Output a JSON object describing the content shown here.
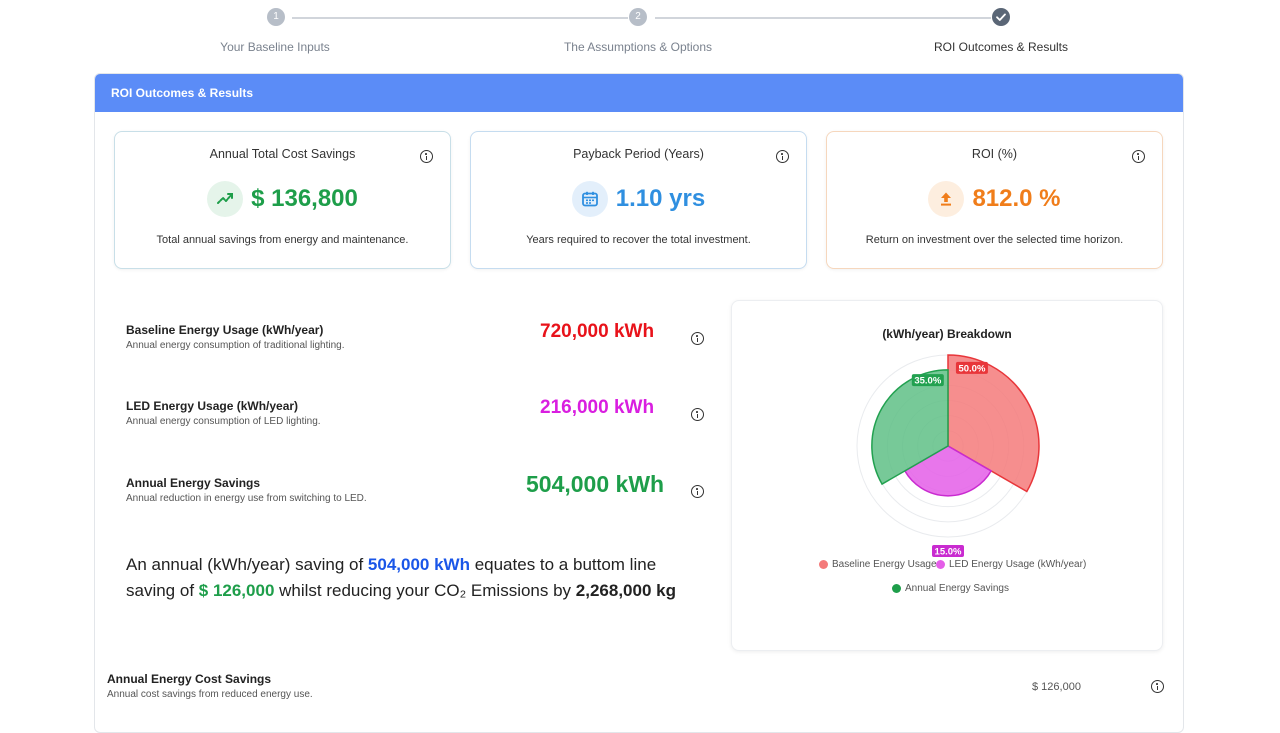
{
  "stepper": {
    "steps": [
      {
        "number": "1",
        "label": "Your Baseline Inputs"
      },
      {
        "number": "2",
        "label": "The Assumptions & Options"
      },
      {
        "number": "",
        "label": "ROI Outcomes & Results"
      }
    ]
  },
  "panel": {
    "header": "ROI Outcomes & Results"
  },
  "kpis": [
    {
      "title": "Annual Total Cost Savings",
      "value": "$ 136,800",
      "desc": "Total annual savings from energy and maintenance.",
      "color": "#1e9e4a",
      "icon": "trending-up-icon"
    },
    {
      "title": "Payback Period (Years)",
      "value": "1.10 yrs",
      "desc": "Years required to recover the total investment.",
      "color": "#2f8fe0",
      "icon": "calendar-icon"
    },
    {
      "title": "ROI (%)",
      "value": "812.0 %",
      "desc": "Return on investment over the selected time horizon.",
      "color": "#f07d1a",
      "icon": "upload-arrow-icon"
    }
  ],
  "metrics": [
    {
      "title": "Baseline Energy Usage (kWh/year)",
      "desc": "Annual energy consumption of traditional lighting.",
      "value": "720,000 kWh",
      "color": "#e8121a"
    },
    {
      "title": "LED Energy Usage (kWh/year)",
      "desc": "Annual energy consumption of LED lighting.",
      "value": "216,000 kWh",
      "color": "#d91ee0"
    },
    {
      "title": "Annual Energy Savings",
      "desc": "Annual reduction in energy use from switching to LED.",
      "value": "504,000 kWh",
      "color": "#1e9e4a"
    }
  ],
  "summary": {
    "part1": "An annual (kWh/year) saving of ",
    "kwh": "504,000 kWh",
    "part2": " equates to a buttom line saving of ",
    "money": "$ 126,000",
    "part3": " whilst reducing your CO₂ Emissions by ",
    "co2": "2,268,000 kg"
  },
  "chart": {
    "title": "(kWh/year) Breakdown",
    "legend": [
      "Baseline Energy Usage",
      "LED Energy Usage (kWh/year)",
      "Annual Energy Savings"
    ]
  },
  "chart_data": {
    "type": "polar-area",
    "title": "(kWh/year) Breakdown",
    "categories": [
      "Baseline Energy Usage",
      "LED Energy Usage (kWh/year)",
      "Annual Energy Savings"
    ],
    "values": [
      720000,
      216000,
      504000
    ],
    "percent_labels": [
      "50.0%",
      "15.0%",
      "35.0%"
    ],
    "colors": [
      "#f47a7a",
      "#e45ee8",
      "#5fbf86"
    ],
    "legend_position": "bottom"
  },
  "bottom": {
    "title": "Annual Energy Cost Savings",
    "desc": "Annual cost savings from reduced energy use.",
    "value": "$ 126,000"
  }
}
